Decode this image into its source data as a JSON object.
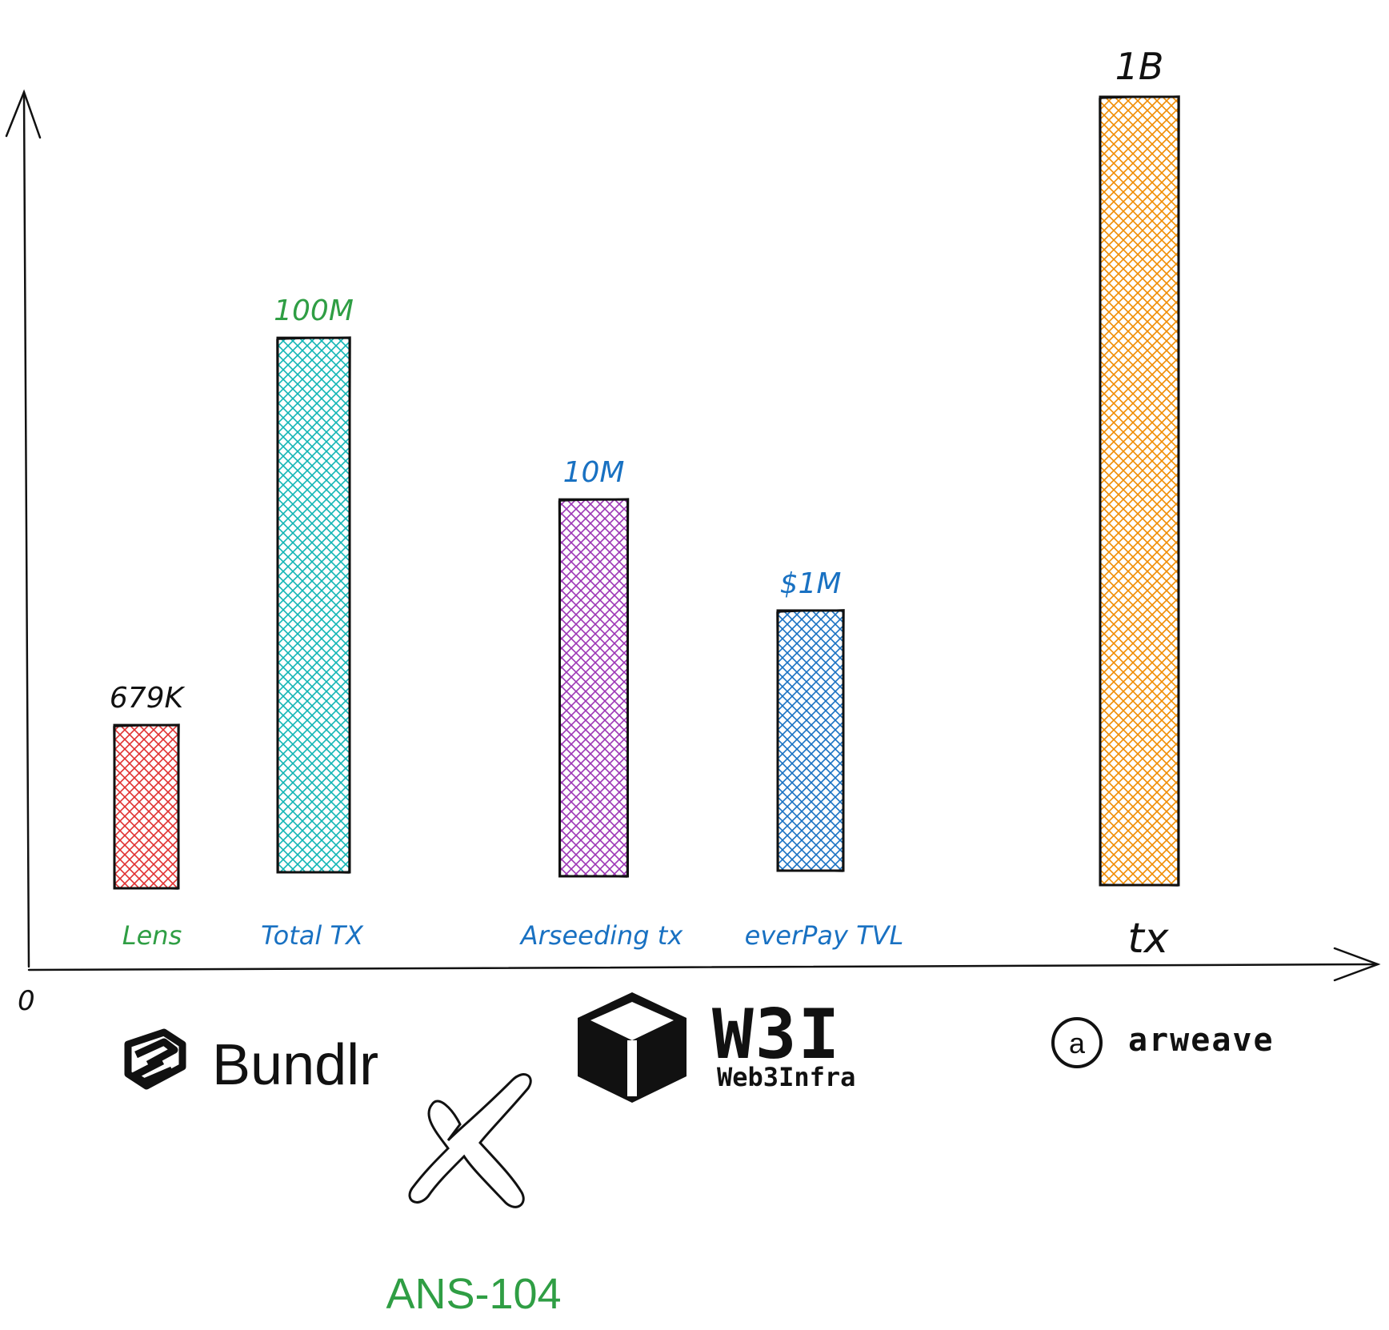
{
  "chart_data": {
    "type": "bar",
    "title": "",
    "xlabel": "",
    "ylabel": "",
    "axis_origin_label": "0",
    "categories": [
      "Lens",
      "Total TX",
      "Arseeding tx",
      "everPay TVL",
      "tx"
    ],
    "values_display": [
      "679K",
      "100M",
      "10M",
      "$1M",
      "1B"
    ],
    "values": [
      679000,
      100000000,
      10000000,
      1000000,
      1000000000
    ],
    "relative_heights": [
      0.207,
      0.678,
      0.478,
      0.33,
      1.0
    ],
    "colors": [
      "#e03131",
      "#12b5b5",
      "#9c36b5",
      "#1971c2",
      "#f08c00"
    ],
    "label_colors": [
      "#2f9e44",
      "#1971c2",
      "#1971c2",
      "#1971c2",
      "#111111"
    ],
    "value_label_colors": [
      "#111111",
      "#2f9e44",
      "#1971c2",
      "#1971c2",
      "#111111"
    ],
    "grid": false,
    "legend": "none"
  },
  "logos": {
    "bundlr": "Bundlr",
    "web3infra_mark": "W3I",
    "web3infra_name": "Web3Infra",
    "arweave_glyph": "a",
    "arweave": "arweave",
    "ans104": "ANS-104",
    "ans104_color": "#2f9e44",
    "icons": [
      "bundlr-logo-icon",
      "web3infra-cube-icon",
      "arweave-circle-icon",
      "cross-icon"
    ]
  }
}
